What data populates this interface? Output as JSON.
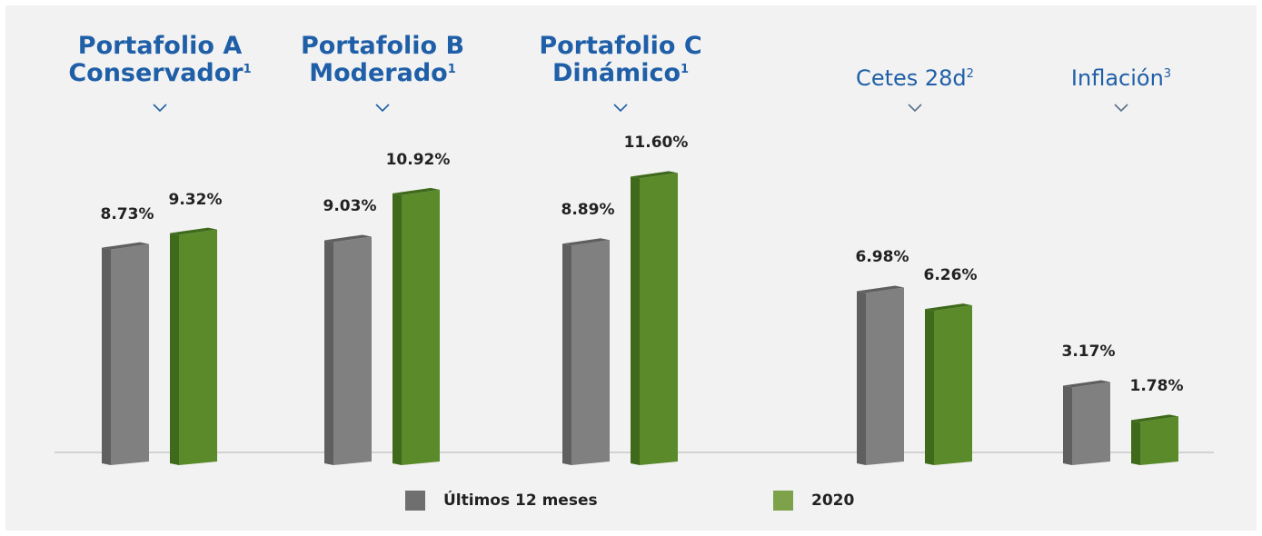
{
  "chart_data": {
    "type": "bar",
    "categories": [
      {
        "line1": "Portafolio A",
        "line2": "Conservador",
        "sup": "1",
        "style": "bold"
      },
      {
        "line1": "Portafolio B",
        "line2": "Moderado",
        "sup": "1",
        "style": "bold"
      },
      {
        "line1": "Portafolio C",
        "line2": "Dinámico",
        "sup": "1",
        "style": "bold"
      },
      {
        "line1": "Cetes 28d",
        "line2": "",
        "sup": "2",
        "style": "light"
      },
      {
        "line1": "Inflación",
        "line2": "",
        "sup": "3",
        "style": "light"
      }
    ],
    "series": [
      {
        "name": "Últimos 12 meses",
        "values": [
          8.73,
          9.03,
          8.89,
          6.98,
          3.17
        ],
        "labels": [
          "8.73%",
          "9.03%",
          "8.89%",
          "6.98%",
          "3.17%"
        ],
        "color": "#808080",
        "side_color": "#5f5f5f",
        "legend_color": "#6f6f6f"
      },
      {
        "name": "2020",
        "values": [
          9.32,
          10.92,
          11.6,
          6.26,
          1.78
        ],
        "labels": [
          "9.32%",
          "10.92%",
          "11.60%",
          "6.26%",
          "1.78%"
        ],
        "color": "#5b8a2a",
        "side_color": "#3f6a1c",
        "legend_color": "#7ea24a"
      }
    ],
    "legend_position": "bottom",
    "grid": false,
    "ylim": [
      0,
      12
    ]
  },
  "colors": {
    "title": "#1f5fa8",
    "chevron": "#5a6f8a",
    "baseline": "#c8c8c8"
  }
}
